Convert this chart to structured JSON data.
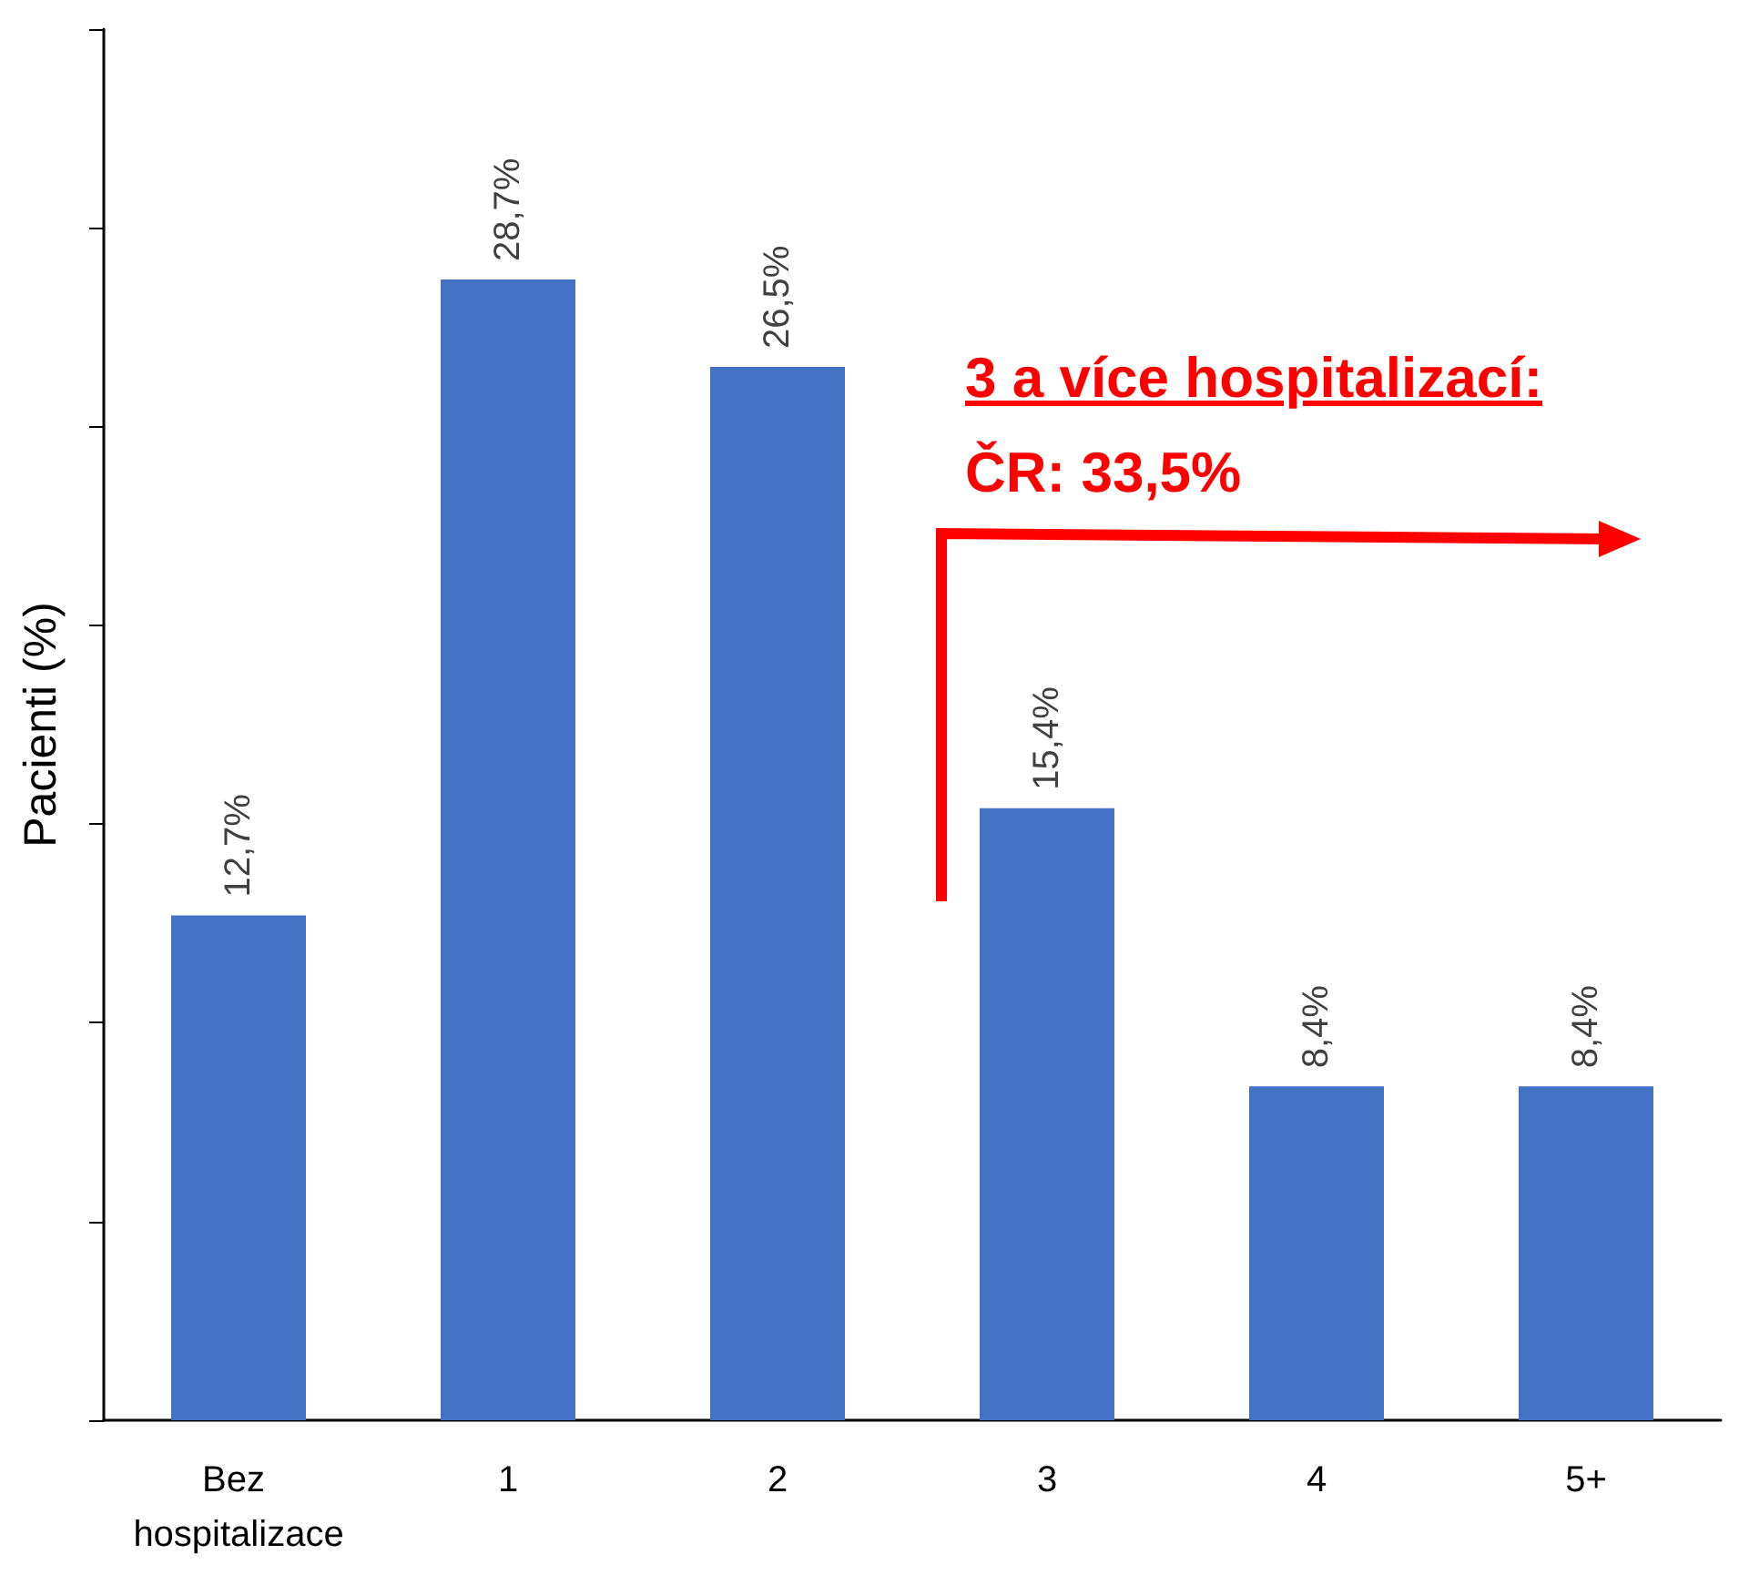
{
  "chart_data": {
    "type": "bar",
    "ylabel": "Pacienti (%)",
    "categories": [
      "Bez hospitalizace",
      "1",
      "2",
      "3",
      "4",
      "5+"
    ],
    "values": [
      12.7,
      28.7,
      26.5,
      15.4,
      8.4,
      8.4
    ],
    "value_labels": [
      "12,7%",
      "28,7%",
      "26,5%",
      "15,4%",
      "8,4%",
      "8,4%"
    ],
    "color": "#4472c4",
    "ylim": [
      0,
      35
    ],
    "yticks": [
      {
        "value": 0,
        "label": null
      },
      {
        "value": 5,
        "label": null
      },
      {
        "value": 10,
        "label": null
      },
      {
        "value": 15,
        "label": null
      },
      {
        "value": 20,
        "label": null
      },
      {
        "value": 25,
        "label": null
      },
      {
        "value": 30,
        "label": null
      },
      {
        "value": 35,
        "label": null
      }
    ],
    "tick_labels": "x",
    "grid": false,
    "annotations": [
      "3 a více hospitalizací:",
      "ČR: 33,5%"
    ]
  }
}
